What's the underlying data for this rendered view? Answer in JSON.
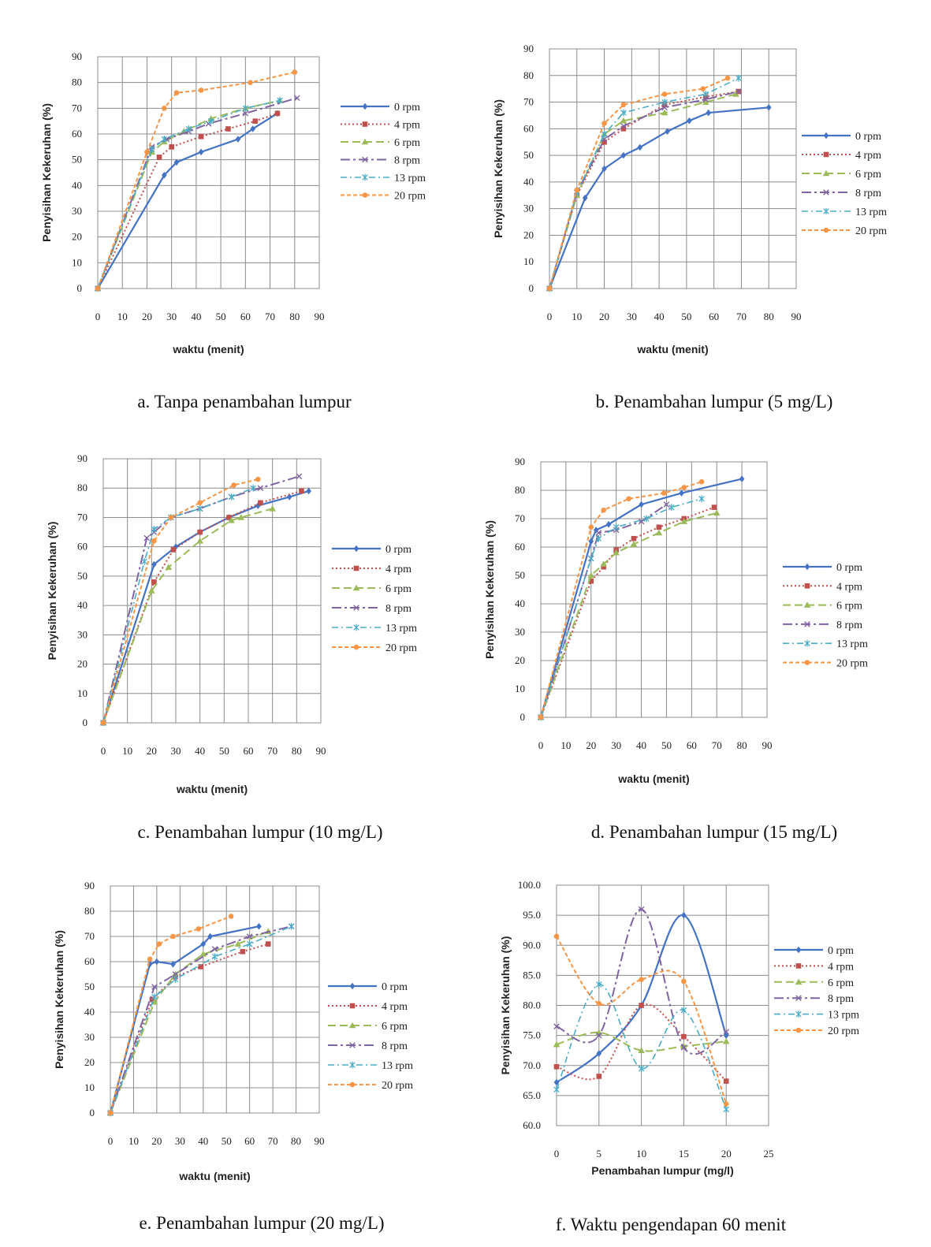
{
  "colors": {
    "0 rpm": "#4472C4",
    "4 rpm": "#C0504D",
    "6 rpm": "#9BBB59",
    "8 rpm": "#8064A2",
    "13 rpm": "#4BACC6",
    "20 rpm": "#F79646"
  },
  "chart_data": [
    {
      "id": "a",
      "type": "line",
      "caption": "a.   Tanpa penambahan lumpur",
      "xlabel": "waktu (menit)",
      "ylabel": "Penyisihan Kekeruhan (%)",
      "xlim": [
        0,
        90
      ],
      "ylim": [
        0,
        90
      ],
      "xticks": [
        "0",
        "10",
        "20",
        "30",
        "40",
        "50",
        "60",
        "70",
        "80",
        "90"
      ],
      "yticks": [
        "0",
        "10",
        "20",
        "30",
        "40",
        "50",
        "60",
        "70",
        "80",
        "90"
      ],
      "grid": true,
      "legend": "right",
      "series": [
        {
          "name": "0 rpm",
          "x": [
            0,
            27,
            32,
            42,
            57,
            63,
            73
          ],
          "y": [
            0,
            44,
            49,
            53,
            58,
            62,
            68
          ]
        },
        {
          "name": "4 rpm",
          "x": [
            0,
            25,
            30,
            42,
            53,
            64,
            73
          ],
          "y": [
            0,
            51,
            55,
            59,
            62,
            65,
            68
          ]
        },
        {
          "name": "6 rpm",
          "x": [
            0,
            22,
            27,
            35,
            46,
            60,
            74
          ],
          "y": [
            0,
            53,
            57,
            61,
            66,
            70,
            73
          ]
        },
        {
          "name": "8 rpm",
          "x": [
            0,
            22,
            28,
            37,
            45,
            60,
            81
          ],
          "y": [
            0,
            55,
            58,
            61,
            64,
            68,
            74
          ]
        },
        {
          "name": "13 rpm",
          "x": [
            0,
            22,
            27,
            37,
            46,
            60,
            74
          ],
          "y": [
            0,
            54,
            58,
            62,
            65,
            70,
            73
          ]
        },
        {
          "name": "20 rpm",
          "x": [
            0,
            20,
            27,
            32,
            42,
            62,
            80
          ],
          "y": [
            0,
            53,
            70,
            76,
            77,
            80,
            84
          ]
        }
      ]
    },
    {
      "id": "b",
      "type": "line",
      "caption": "b.   Penambahan lumpur (5 mg/L)",
      "xlabel": "waktu (menit)",
      "ylabel": "Penyisihan Kekeruhan (%)",
      "xlim": [
        0,
        90
      ],
      "ylim": [
        0,
        90
      ],
      "xticks": [
        "0",
        "10",
        "20",
        "30",
        "40",
        "50",
        "60",
        "70",
        "80",
        "90"
      ],
      "yticks": [
        "0",
        "10",
        "20",
        "30",
        "40",
        "50",
        "60",
        "70",
        "80",
        "90"
      ],
      "grid": true,
      "legend": "right",
      "series": [
        {
          "name": "0 rpm",
          "x": [
            0,
            13,
            20,
            27,
            33,
            43,
            51,
            58,
            80
          ],
          "y": [
            0,
            34,
            45,
            50,
            53,
            59,
            63,
            66,
            68
          ]
        },
        {
          "name": "4 rpm",
          "x": [
            0,
            10,
            20,
            27,
            42,
            57,
            69
          ],
          "y": [
            0,
            35,
            55,
            60,
            69,
            72,
            74
          ]
        },
        {
          "name": "6 rpm",
          "x": [
            0,
            10,
            20,
            27,
            42,
            57,
            68
          ],
          "y": [
            0,
            35,
            58,
            63,
            66,
            70,
            73
          ]
        },
        {
          "name": "8 rpm",
          "x": [
            0,
            10,
            20,
            27,
            42,
            57,
            69
          ],
          "y": [
            0,
            36,
            56,
            61,
            68,
            71,
            74
          ]
        },
        {
          "name": "13 rpm",
          "x": [
            0,
            10,
            20,
            27,
            42,
            57,
            69
          ],
          "y": [
            0,
            36,
            58,
            66,
            70,
            73,
            79
          ]
        },
        {
          "name": "20 rpm",
          "x": [
            0,
            10,
            20,
            27,
            42,
            56,
            65
          ],
          "y": [
            0,
            37,
            62,
            69,
            73,
            75,
            79
          ]
        }
      ]
    },
    {
      "id": "c",
      "type": "line",
      "caption": "c.   Penambahan lumpur (10 mg/L)",
      "xlabel": "waktu (menit)",
      "ylabel": "Penyisihan Kekeruhan (%)",
      "xlim": [
        0,
        90
      ],
      "ylim": [
        0,
        90
      ],
      "xticks": [
        "0",
        "10",
        "20",
        "30",
        "40",
        "50",
        "60",
        "70",
        "80",
        "90"
      ],
      "yticks": [
        "0",
        "10",
        "20",
        "30",
        "40",
        "50",
        "60",
        "70",
        "80",
        "90"
      ],
      "grid": true,
      "legend": "right",
      "series": [
        {
          "name": "0 rpm",
          "x": [
            0,
            21,
            30,
            40,
            52,
            64,
            77,
            85
          ],
          "y": [
            0,
            54,
            60,
            65,
            70,
            74,
            77,
            79
          ]
        },
        {
          "name": "4 rpm",
          "x": [
            0,
            21,
            29,
            40,
            52,
            65,
            82
          ],
          "y": [
            0,
            48,
            59,
            65,
            70,
            75,
            79
          ]
        },
        {
          "name": "6 rpm",
          "x": [
            0,
            20,
            27,
            40,
            53,
            57,
            70
          ],
          "y": [
            0,
            45,
            53,
            62,
            69,
            70,
            73
          ]
        },
        {
          "name": "8 rpm",
          "x": [
            0,
            18,
            21,
            28,
            40,
            53,
            65,
            81
          ],
          "y": [
            0,
            63,
            65,
            70,
            73,
            77,
            80,
            84
          ]
        },
        {
          "name": "13 rpm",
          "x": [
            0,
            17,
            21,
            28,
            40,
            53,
            62
          ],
          "y": [
            0,
            55,
            66,
            70,
            73,
            77,
            80
          ]
        },
        {
          "name": "20 rpm",
          "x": [
            0,
            21,
            28,
            40,
            54,
            64
          ],
          "y": [
            0,
            62,
            70,
            75,
            81,
            83
          ]
        }
      ]
    },
    {
      "id": "d",
      "type": "line",
      "caption": "d.   Penambahan lumpur (15 mg/L)",
      "xlabel": "waktu (menit)",
      "ylabel": "Penyisihan Kekeruhan (%)",
      "xlim": [
        0,
        90
      ],
      "ylim": [
        0,
        90
      ],
      "xticks": [
        "0",
        "10",
        "20",
        "30",
        "40",
        "50",
        "60",
        "70",
        "80",
        "90"
      ],
      "yticks": [
        "0",
        "10",
        "20",
        "30",
        "40",
        "50",
        "60",
        "70",
        "80",
        "90"
      ],
      "grid": true,
      "legend": "right",
      "series": [
        {
          "name": "0 rpm",
          "x": [
            0,
            20,
            22,
            27,
            40,
            56,
            80
          ],
          "y": [
            0,
            62,
            66,
            68,
            75,
            79,
            84
          ]
        },
        {
          "name": "4 rpm",
          "x": [
            0,
            20,
            25,
            30,
            37,
            47,
            57,
            69
          ],
          "y": [
            0,
            48,
            53,
            59,
            63,
            67,
            70,
            74
          ]
        },
        {
          "name": "6 rpm",
          "x": [
            0,
            20,
            25,
            30,
            37,
            47,
            57,
            70
          ],
          "y": [
            0,
            50,
            54,
            58,
            61,
            65,
            69,
            72
          ]
        },
        {
          "name": "8 rpm",
          "x": [
            0,
            20,
            23,
            30,
            40,
            50
          ],
          "y": [
            0,
            56,
            65,
            66,
            69,
            75
          ]
        },
        {
          "name": "13 rpm",
          "x": [
            0,
            20,
            23,
            30,
            42,
            52,
            64
          ],
          "y": [
            0,
            56,
            63,
            67,
            70,
            74,
            77
          ]
        },
        {
          "name": "20 rpm",
          "x": [
            0,
            20,
            25,
            35,
            49,
            57,
            64
          ],
          "y": [
            0,
            67,
            73,
            77,
            79,
            81,
            83
          ]
        }
      ]
    },
    {
      "id": "e",
      "type": "line",
      "caption": "e.   Penambahan lumpur (20 mg/L)",
      "xlabel": "waktu (menit)",
      "ylabel": "Penyisihan Kekeruhan (%)",
      "xlim": [
        0,
        90
      ],
      "ylim": [
        0,
        90
      ],
      "xticks": [
        "0",
        "10",
        "20",
        "30",
        "40",
        "50",
        "60",
        "70",
        "80",
        "90"
      ],
      "yticks": [
        "0",
        "10",
        "20",
        "30",
        "40",
        "50",
        "60",
        "70",
        "80",
        "90"
      ],
      "grid": true,
      "legend": "right",
      "series": [
        {
          "name": "0 rpm",
          "x": [
            0,
            17,
            20,
            27,
            40,
            43,
            64
          ],
          "y": [
            0,
            59,
            60,
            59,
            67,
            70,
            74
          ]
        },
        {
          "name": "4 rpm",
          "x": [
            0,
            18,
            28,
            39,
            57,
            68
          ],
          "y": [
            0,
            45,
            54,
            58,
            64,
            67
          ]
        },
        {
          "name": "6 rpm",
          "x": [
            0,
            19,
            28,
            40,
            55,
            68
          ],
          "y": [
            0,
            44,
            55,
            63,
            67,
            72
          ]
        },
        {
          "name": "8 rpm",
          "x": [
            0,
            19,
            28,
            45,
            60,
            78
          ],
          "y": [
            0,
            50,
            55,
            65,
            70,
            74
          ]
        },
        {
          "name": "13 rpm",
          "x": [
            0,
            19,
            28,
            45,
            60,
            78
          ],
          "y": [
            0,
            46,
            53,
            62,
            67,
            74
          ]
        },
        {
          "name": "20 rpm",
          "x": [
            0,
            17,
            21,
            27,
            38,
            52
          ],
          "y": [
            0,
            61,
            67,
            70,
            73,
            78
          ]
        }
      ]
    },
    {
      "id": "f",
      "type": "line",
      "caption": "f. Waktu pengendapan 60 menit",
      "xlabel": "Penambahan lumpur (mg/l)",
      "ylabel": "Penyisihan Kekeruhan (%)",
      "xlim": [
        0,
        25
      ],
      "ylim": [
        60,
        100
      ],
      "xticks": [
        "0",
        "5",
        "10",
        "15",
        "20",
        "25"
      ],
      "yticks": [
        "60.0",
        "65.0",
        "70.0",
        "75.0",
        "80.0",
        "85.0",
        "90.0",
        "95.0",
        "100.0"
      ],
      "grid": true,
      "legend": "right",
      "series": [
        {
          "name": "0 rpm",
          "x": [
            0,
            5,
            10,
            15,
            20
          ],
          "y": [
            67.2,
            72.0,
            80.0,
            95.0,
            75.0
          ]
        },
        {
          "name": "4 rpm",
          "x": [
            0,
            5,
            10,
            15,
            20
          ],
          "y": [
            69.8,
            68.2,
            80.0,
            74.8,
            67.4
          ]
        },
        {
          "name": "6 rpm",
          "x": [
            0,
            5,
            10,
            15,
            20
          ],
          "y": [
            73.5,
            75.5,
            72.5,
            73.2,
            74.0
          ]
        },
        {
          "name": "8 rpm",
          "x": [
            0,
            5,
            10,
            15,
            20
          ],
          "y": [
            76.5,
            75.0,
            96.0,
            73.0,
            75.6
          ]
        },
        {
          "name": "13 rpm",
          "x": [
            0,
            5,
            10,
            15,
            20
          ],
          "y": [
            66.0,
            83.5,
            69.5,
            79.2,
            62.7
          ]
        },
        {
          "name": "20 rpm",
          "x": [
            0,
            5,
            10,
            15,
            20
          ],
          "y": [
            91.5,
            80.3,
            84.3,
            84.0,
            63.6
          ]
        }
      ]
    }
  ]
}
